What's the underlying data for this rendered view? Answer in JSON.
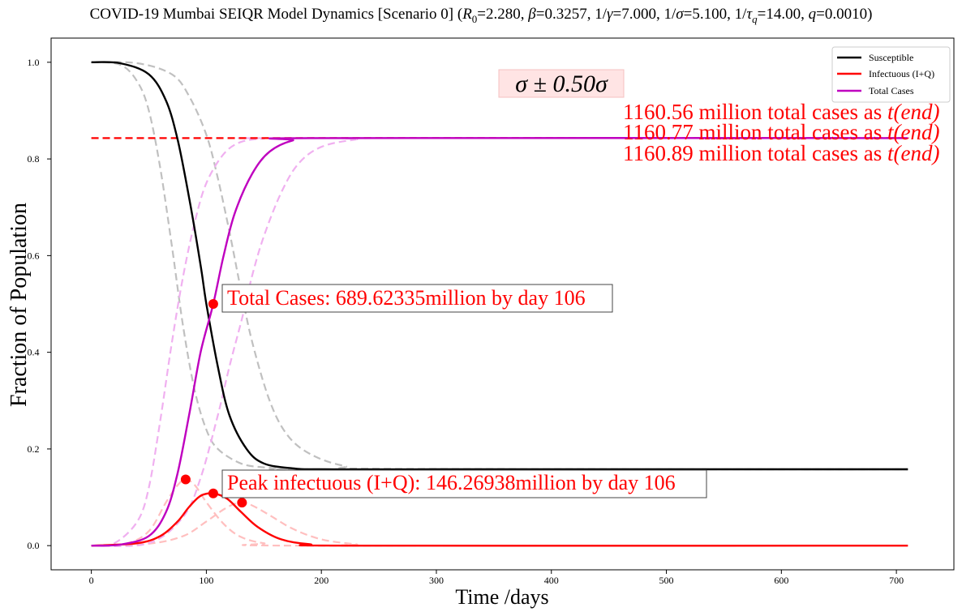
{
  "chart_data": {
    "type": "line",
    "title": "COVID-19 Mumbai SEIQR Model Dynamics [Scenario 0] (R0=2.280, β=0.3257, 1/γ=7.000, 1/σ=5.100, 1/τq=14.00, q=0.0010)",
    "title_parts": {
      "prefix": "COVID-19 Mumbai SEIQR Model Dynamics [Scenario 0] (",
      "r0_sym": "R",
      "r0_sub": "0",
      "r0_val": "=2.280, ",
      "beta_sym": "β",
      "beta_val": "=0.3257, 1/",
      "gamma_sym": "γ",
      "gamma_val": "=7.000, 1/",
      "sigma_sym": "σ",
      "sigma_val": "=5.100, 1/",
      "tau_sym": "τ",
      "tau_sub": "q",
      "tau_val": "=14.00, ",
      "q_sym": "q",
      "q_val": "=0.0010)"
    },
    "xlabel": "Time /days",
    "ylabel": "Fraction of Population",
    "xlim": [
      -35,
      750
    ],
    "ylim": [
      -0.05,
      1.05
    ],
    "xticks": [
      0,
      100,
      200,
      300,
      400,
      500,
      600,
      700
    ],
    "xtick_labels": [
      "0",
      "100",
      "200",
      "300",
      "400",
      "500",
      "600",
      "700"
    ],
    "yticks": [
      0.0,
      0.2,
      0.4,
      0.6,
      0.8,
      1.0
    ],
    "ytick_labels": [
      "0.0",
      "0.2",
      "0.4",
      "0.6",
      "0.8",
      "1.0"
    ],
    "grid": false,
    "legend": {
      "position": "top-right",
      "entries": [
        {
          "label": "Susceptible",
          "color": "#000000"
        },
        {
          "label": "Infectuous (I+Q)",
          "color": "#ff0000"
        },
        {
          "label": "Total Cases",
          "color": "#bf00bf"
        }
      ]
    },
    "series": [
      {
        "name": "Susceptible",
        "color": "#000000",
        "style": "solid",
        "x": [
          0,
          25,
          50,
          65,
          75,
          85,
          95,
          100,
          110,
          120,
          135,
          150,
          175,
          200,
          300,
          710
        ],
        "values": [
          1.0,
          0.998,
          0.975,
          0.92,
          0.84,
          0.72,
          0.58,
          0.5,
          0.37,
          0.27,
          0.2,
          0.17,
          0.16,
          0.158,
          0.158,
          0.158
        ]
      },
      {
        "name": "Susceptible (σ-0.50σ)",
        "color": "#c0c0c0",
        "style": "dashed",
        "x": [
          0,
          25,
          40,
          50,
          60,
          70,
          80,
          90,
          100,
          110,
          130,
          150,
          175,
          200,
          710
        ],
        "values": [
          1.0,
          0.995,
          0.96,
          0.9,
          0.78,
          0.62,
          0.45,
          0.32,
          0.24,
          0.2,
          0.17,
          0.162,
          0.159,
          0.158,
          0.158
        ]
      },
      {
        "name": "Susceptible (σ+0.50σ)",
        "color": "#c0c0c0",
        "style": "dashed",
        "x": [
          0,
          40,
          70,
          85,
          100,
          110,
          120,
          130,
          140,
          155,
          170,
          190,
          220,
          260,
          710
        ],
        "values": [
          1.0,
          0.998,
          0.975,
          0.93,
          0.85,
          0.76,
          0.65,
          0.53,
          0.42,
          0.3,
          0.23,
          0.19,
          0.165,
          0.159,
          0.158
        ]
      },
      {
        "name": "Infectuous (I+Q)",
        "color": "#ff0000",
        "style": "solid",
        "x": [
          0,
          40,
          60,
          75,
          85,
          95,
          106,
          118,
          130,
          145,
          165,
          190,
          230,
          710
        ],
        "values": [
          0.0,
          0.005,
          0.02,
          0.05,
          0.08,
          0.103,
          0.108,
          0.097,
          0.07,
          0.038,
          0.013,
          0.003,
          0.0,
          0.0
        ]
      },
      {
        "name": "Infectuous (σ-0.50σ)",
        "color": "#ffbfbf",
        "style": "dashed",
        "x": [
          0,
          30,
          50,
          65,
          75,
          82,
          90,
          100,
          115,
          130,
          150,
          180,
          710
        ],
        "values": [
          0.0,
          0.004,
          0.03,
          0.09,
          0.125,
          0.137,
          0.125,
          0.09,
          0.045,
          0.018,
          0.005,
          0.0,
          0.0
        ]
      },
      {
        "name": "Infectuous (σ+0.50σ)",
        "color": "#ffbfbf",
        "style": "dashed",
        "x": [
          0,
          50,
          80,
          100,
          115,
          125,
          131,
          140,
          155,
          175,
          200,
          230,
          260,
          710
        ],
        "values": [
          0.0,
          0.004,
          0.02,
          0.05,
          0.075,
          0.087,
          0.089,
          0.083,
          0.063,
          0.035,
          0.013,
          0.003,
          0.0,
          0.0
        ]
      },
      {
        "name": "Total Cases",
        "color": "#bf00bf",
        "style": "solid",
        "x": [
          0,
          25,
          50,
          65,
          75,
          85,
          95,
          106,
          115,
          125,
          140,
          155,
          175,
          200,
          710
        ],
        "values": [
          0.0,
          0.002,
          0.02,
          0.07,
          0.15,
          0.27,
          0.4,
          0.5,
          0.6,
          0.69,
          0.77,
          0.815,
          0.838,
          0.843,
          0.843
        ]
      },
      {
        "name": "Total Cases (σ-0.50σ)",
        "color": "#f0b0f0",
        "style": "dashed",
        "x": [
          0,
          20,
          40,
          50,
          60,
          70,
          80,
          90,
          100,
          115,
          130,
          150,
          175,
          710
        ],
        "values": [
          0.0,
          0.005,
          0.05,
          0.12,
          0.26,
          0.42,
          0.56,
          0.67,
          0.75,
          0.81,
          0.835,
          0.842,
          0.843,
          0.843
        ]
      },
      {
        "name": "Total Cases (σ+0.50σ)",
        "color": "#f0b0f0",
        "style": "dashed",
        "x": [
          0,
          50,
          80,
          95,
          110,
          120,
          131,
          140,
          150,
          165,
          180,
          200,
          230,
          260,
          710
        ],
        "values": [
          0.0,
          0.005,
          0.06,
          0.14,
          0.27,
          0.37,
          0.47,
          0.56,
          0.64,
          0.73,
          0.79,
          0.825,
          0.84,
          0.843,
          0.843
        ]
      },
      {
        "name": "Total cases reference",
        "color": "#ff0000",
        "style": "dashed",
        "x": [
          0,
          710
        ],
        "values": [
          0.843,
          0.843
        ]
      }
    ],
    "markers": [
      {
        "x": 106,
        "y": 0.5,
        "color": "#ff0000"
      },
      {
        "x": 82,
        "y": 0.137,
        "color": "#ff0000"
      },
      {
        "x": 106,
        "y": 0.108,
        "color": "#ff0000"
      },
      {
        "x": 131,
        "y": 0.089,
        "color": "#ff0000"
      }
    ],
    "annotations": {
      "total_cases_box": "Total Cases: 689.62335million by day 106",
      "peak_box": "Peak infectuous (I+Q): 146.26938million by day 106",
      "sigma_box": "σ ± 0.50σ",
      "end_cases": [
        {
          "prefix": "1160.56 million total cases as ",
          "t": "t",
          "end": "(end)"
        },
        {
          "prefix": "1160.77 million total cases as ",
          "t": "t",
          "end": "(end)"
        },
        {
          "prefix": "1160.89 million total cases as ",
          "t": "t",
          "end": "(end)"
        }
      ]
    }
  }
}
